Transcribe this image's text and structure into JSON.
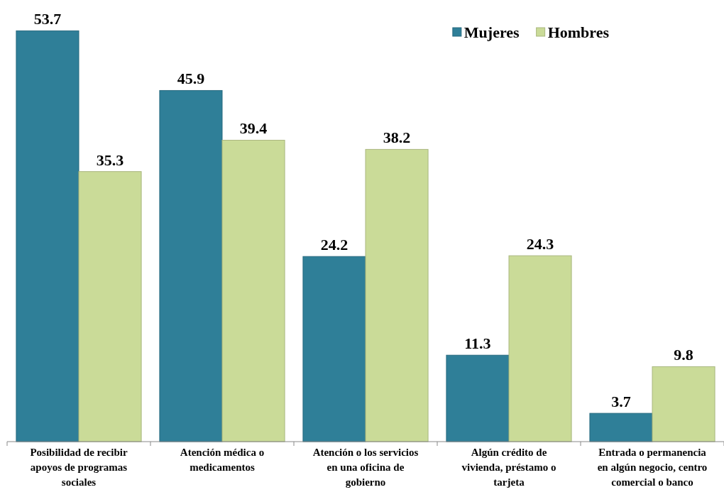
{
  "chart_data": {
    "type": "bar",
    "categories": [
      "Posibilidad de recibir apoyos de programas sociales",
      "Atención médica o medicamentos",
      "Atención o los servicios en una oficina de gobierno",
      "Algún crédito de vivienda, préstamo o tarjeta",
      "Entrada o permanencia en algún negocio, centro comercial o banco"
    ],
    "series": [
      {
        "name": "Mujeres",
        "color": "#2f7f98",
        "values": [
          53.7,
          45.9,
          24.2,
          11.3,
          3.7
        ]
      },
      {
        "name": "Hombres",
        "color": "#cadb98",
        "values": [
          35.3,
          39.4,
          38.2,
          24.3,
          9.8
        ]
      }
    ],
    "data_labels": true,
    "legend": "top right"
  }
}
